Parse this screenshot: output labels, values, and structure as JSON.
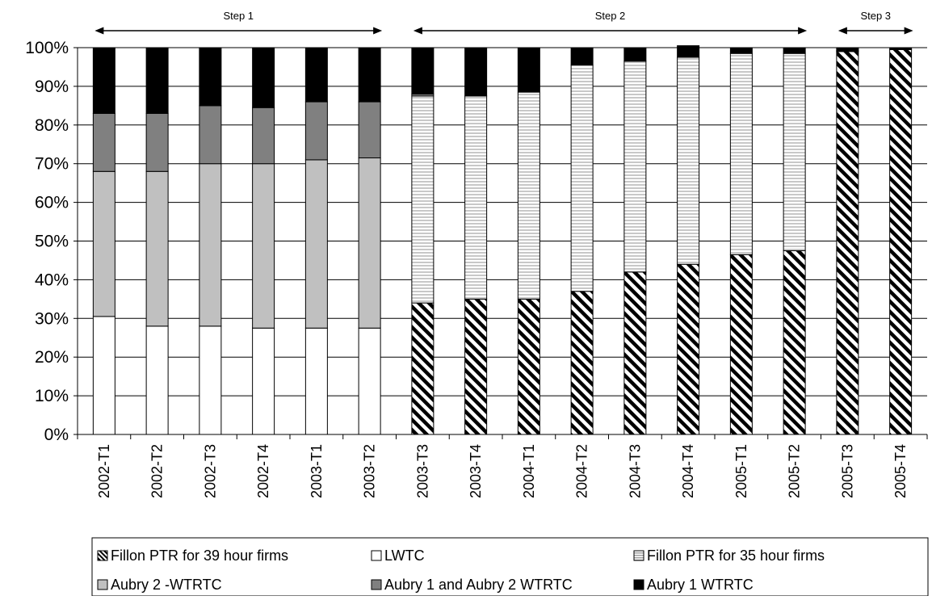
{
  "chart_data": {
    "type": "bar",
    "stacked": true,
    "categories": [
      "2002-T1",
      "2002-T2",
      "2002-T3",
      "2002-T4",
      "2003-T1",
      "2003-T2",
      "2003-T3",
      "2003-T4",
      "2004-T1",
      "2004-T2",
      "2004-T3",
      "2004-T4",
      "2005-T1",
      "2005-T2",
      "2005-T3",
      "2005-T4"
    ],
    "ylim": [
      0,
      100
    ],
    "yticks": [
      "0%",
      "10%",
      "20%",
      "30%",
      "40%",
      "50%",
      "60%",
      "70%",
      "80%",
      "90%",
      "100%"
    ],
    "grid": true,
    "legend_position": "bottom",
    "series": [
      {
        "name": "Fillon PTR for 39 hour firms",
        "pattern": "diagonal-hatch",
        "color": "#000000",
        "values": [
          0,
          0,
          0,
          0,
          0,
          0,
          34,
          35,
          35,
          37,
          42,
          44,
          46.5,
          47.5,
          99,
          99.5
        ]
      },
      {
        "name": "LWTC",
        "pattern": "solid",
        "color": "#ffffff",
        "values": [
          30.5,
          28,
          28,
          27.5,
          27.5,
          27.5,
          0,
          0,
          0,
          0,
          0,
          0,
          0,
          0,
          0,
          0
        ]
      },
      {
        "name": "Fillon PTR for 35 hour firms",
        "pattern": "horizontal-stripes",
        "color": "#d0d0d0",
        "values": [
          0,
          0,
          0,
          0,
          0,
          0,
          53.5,
          52.5,
          53.5,
          58.5,
          54.5,
          53.5,
          52,
          51,
          0.2,
          0
        ]
      },
      {
        "name": "Aubry 2 -WTRTC",
        "pattern": "solid",
        "color": "#c0c0c0",
        "values": [
          37.5,
          40,
          42,
          42.5,
          43.5,
          44,
          0,
          0,
          0,
          0,
          0,
          0,
          0,
          0,
          0,
          0
        ]
      },
      {
        "name": "Aubry 1 and Aubry 2 WTRTC",
        "pattern": "solid",
        "color": "#808080",
        "values": [
          15,
          15,
          15,
          14.5,
          15,
          14.5,
          0.5,
          0,
          0,
          0,
          0,
          0,
          0,
          0,
          0,
          0
        ]
      },
      {
        "name": "Aubry 1 WTRTC",
        "pattern": "solid",
        "color": "#000000",
        "values": [
          17,
          17,
          15,
          15.5,
          14,
          14,
          12,
          12.5,
          11.5,
          4.5,
          3.5,
          3,
          1.5,
          1.5,
          0.8,
          0.5
        ]
      }
    ],
    "annotations": [
      {
        "text": "Step 1",
        "from_category": 0,
        "to_category": 5
      },
      {
        "text": "Step 2",
        "from_category": 6,
        "to_category": 13
      },
      {
        "text": "Step 3",
        "from_category": 14,
        "to_category": 15
      }
    ]
  }
}
